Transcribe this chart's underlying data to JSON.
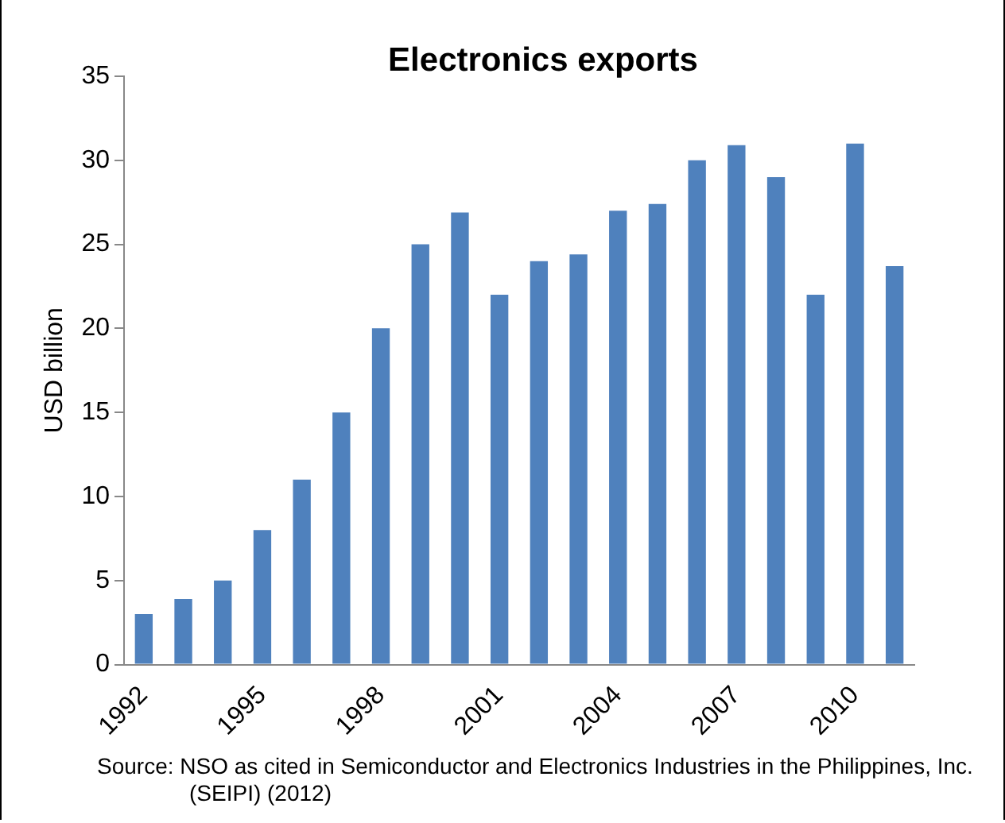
{
  "chart_data": {
    "type": "bar",
    "title": "Electronics exports",
    "ylabel": "USD billion",
    "categories": [
      "1992",
      null,
      null,
      "1995",
      null,
      null,
      "1998",
      null,
      null,
      "2001",
      null,
      null,
      "2004",
      null,
      null,
      "2007",
      null,
      null,
      "2010",
      null
    ],
    "values": [
      3,
      3.9,
      5,
      8,
      11,
      15,
      20,
      25,
      26.9,
      22,
      24,
      24.4,
      27,
      27.4,
      30,
      30.9,
      29,
      22,
      31,
      23.7
    ],
    "color": "#4f81bd",
    "ylim": [
      0,
      35
    ],
    "yticks": [
      0,
      5,
      10,
      15,
      20,
      25,
      30,
      35
    ],
    "grid": false,
    "legend": false,
    "annotations": [
      "Source: NSO as cited in Semiconductor and Electronics Industries in the Philippines, Inc. (SEIPI) (2012)"
    ]
  }
}
